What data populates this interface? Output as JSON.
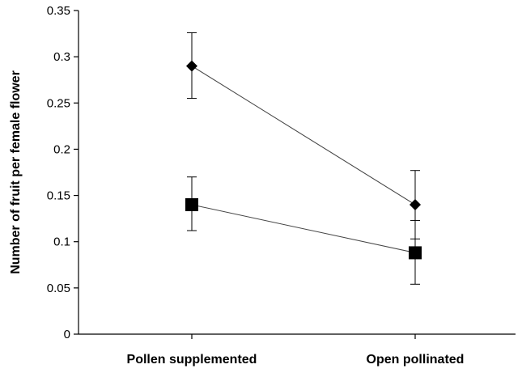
{
  "chart_data": {
    "type": "line",
    "title": "",
    "xlabel": "",
    "ylabel": "Number of fruit per female flower",
    "categories": [
      "Pollen supplemented",
      "Open pollinated"
    ],
    "ylim": [
      0,
      0.35
    ],
    "yticks": [
      "0",
      "0.05",
      "0.1",
      "0.15",
      "0.2",
      "0.25",
      "0.3",
      "0.35"
    ],
    "grid": false,
    "legend": "none",
    "series": [
      {
        "marker": "diamond",
        "color": "#000000",
        "values": [
          0.29,
          0.14
        ],
        "error_low": [
          0.255,
          0.103
        ],
        "error_high": [
          0.326,
          0.177
        ]
      },
      {
        "marker": "square",
        "color": "#000000",
        "values": [
          0.14,
          0.088
        ],
        "error_low": [
          0.112,
          0.054
        ],
        "error_high": [
          0.17,
          0.123
        ]
      }
    ]
  }
}
